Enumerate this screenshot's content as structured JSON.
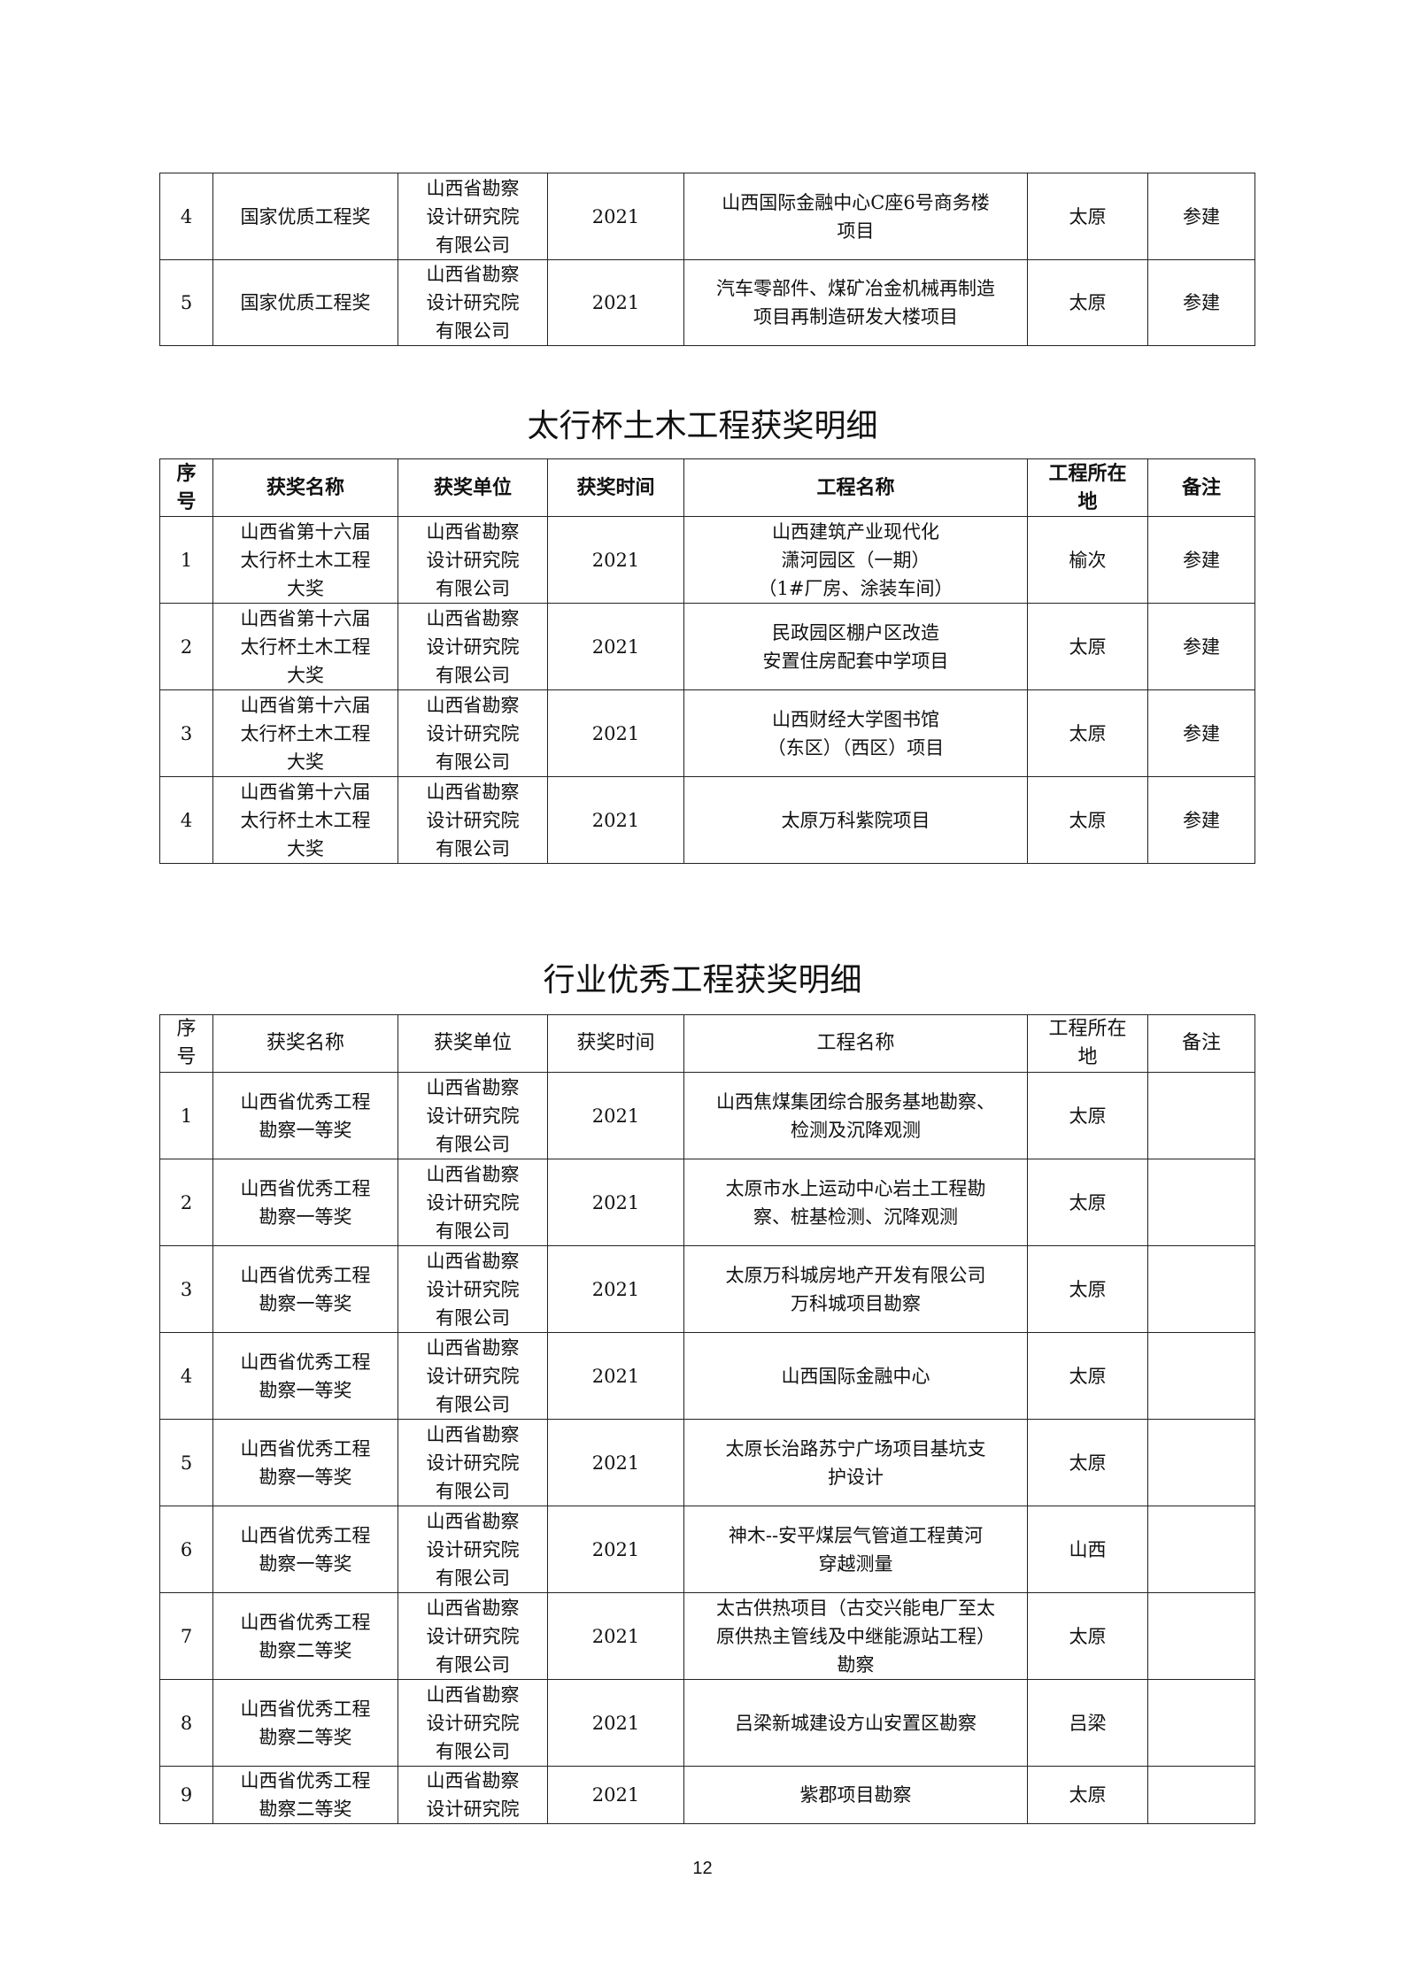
{
  "columns": [
    "序\n号",
    "获奖名称",
    "获奖单位",
    "获奖时间",
    "工程名称",
    "工程所在\n地",
    "备注"
  ],
  "table1": {
    "rows": [
      [
        "4",
        "国家优质工程奖",
        "山西省勘察\n设计研究院\n有限公司",
        "2021",
        "山西国际金融中心C座6号商务楼\n项目",
        "太原",
        "参建"
      ],
      [
        "5",
        "国家优质工程奖",
        "山西省勘察\n设计研究院\n有限公司",
        "2021",
        "汽车零部件、煤矿冶金机械再制造\n项目再制造研发大楼项目",
        "太原",
        "参建"
      ]
    ]
  },
  "table2": {
    "title": "太行杯土木工程获奖明细",
    "rows": [
      [
        "1",
        "山西省第十六届\n太行杯土木工程\n大奖",
        "山西省勘察\n设计研究院\n有限公司",
        "2021",
        "山西建筑产业现代化\n潇河园区（一期）\n（1#厂房、涂装车间）",
        "榆次",
        "参建"
      ],
      [
        "2",
        "山西省第十六届\n太行杯土木工程\n大奖",
        "山西省勘察\n设计研究院\n有限公司",
        "2021",
        "民政园区棚户区改造\n安置住房配套中学项目",
        "太原",
        "参建"
      ],
      [
        "3",
        "山西省第十六届\n太行杯土木工程\n大奖",
        "山西省勘察\n设计研究院\n有限公司",
        "2021",
        "山西财经大学图书馆\n（东区）（西区）项目",
        "太原",
        "参建"
      ],
      [
        "4",
        "山西省第十六届\n太行杯土木工程\n大奖",
        "山西省勘察\n设计研究院\n有限公司",
        "2021",
        "太原万科紫院项目",
        "太原",
        "参建"
      ]
    ]
  },
  "table3": {
    "title": "行业优秀工程获奖明细",
    "rows": [
      [
        "1",
        "山西省优秀工程\n勘察一等奖",
        "山西省勘察\n设计研究院\n有限公司",
        "2021",
        "山西焦煤集团综合服务基地勘察、\n检测及沉降观测",
        "太原",
        ""
      ],
      [
        "2",
        "山西省优秀工程\n勘察一等奖",
        "山西省勘察\n设计研究院\n有限公司",
        "2021",
        "太原市水上运动中心岩土工程勘\n察、桩基检测、沉降观测",
        "太原",
        ""
      ],
      [
        "3",
        "山西省优秀工程\n勘察一等奖",
        "山西省勘察\n设计研究院\n有限公司",
        "2021",
        "太原万科城房地产开发有限公司\n万科城项目勘察",
        "太原",
        ""
      ],
      [
        "4",
        "山西省优秀工程\n勘察一等奖",
        "山西省勘察\n设计研究院\n有限公司",
        "2021",
        "山西国际金融中心",
        "太原",
        ""
      ],
      [
        "5",
        "山西省优秀工程\n勘察一等奖",
        "山西省勘察\n设计研究院\n有限公司",
        "2021",
        "太原长治路苏宁广场项目基坑支\n护设计",
        "太原",
        ""
      ],
      [
        "6",
        "山西省优秀工程\n勘察一等奖",
        "山西省勘察\n设计研究院\n有限公司",
        "2021",
        "神木--安平煤层气管道工程黄河\n穿越测量",
        "山西",
        ""
      ],
      [
        "7",
        "山西省优秀工程\n勘察二等奖",
        "山西省勘察\n设计研究院\n有限公司",
        "2021",
        "太古供热项目（古交兴能电厂至太\n原供热主管线及中继能源站工程）\n勘察",
        "太原",
        ""
      ],
      [
        "8",
        "山西省优秀工程\n勘察二等奖",
        "山西省勘察\n设计研究院\n有限公司",
        "2021",
        "吕梁新城建设方山安置区勘察",
        "吕梁",
        ""
      ],
      [
        "9",
        "山西省优秀工程\n勘察二等奖",
        "山西省勘察\n设计研究院",
        "2021",
        "紫郡项目勘察",
        "太原",
        ""
      ]
    ]
  },
  "page_number": "12"
}
